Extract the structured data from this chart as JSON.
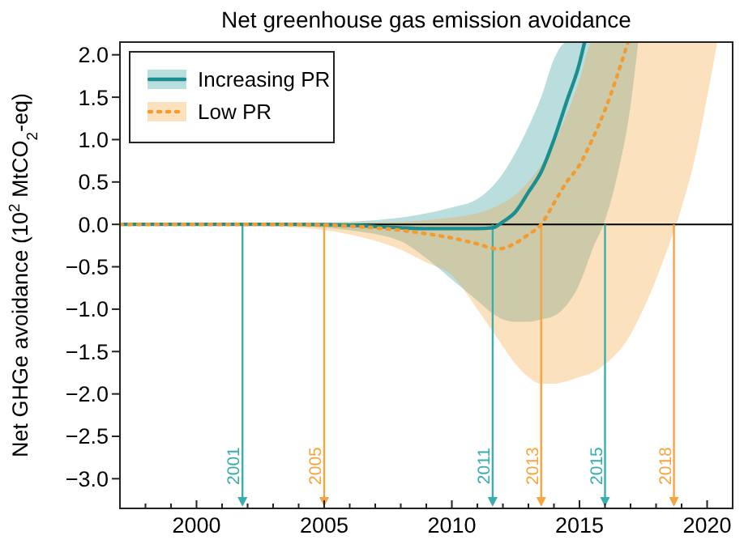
{
  "chart_data": {
    "type": "line",
    "title": "Net greenhouse gas emission avoidance",
    "ylabel": "Net GHGe avoidance (10$^{2}$ MtCO$_{2}$-eq)",
    "xlim": [
      1997,
      2021
    ],
    "ylim": [
      -3.35,
      2.15
    ],
    "xticks": [
      {
        "value": 1998,
        "label": null
      },
      {
        "value": 1999,
        "label": null
      },
      2000,
      {
        "value": 2001,
        "label": null
      },
      {
        "value": 2002,
        "label": null
      },
      {
        "value": 2003,
        "label": null
      },
      {
        "value": 2004,
        "label": null
      },
      2005,
      {
        "value": 2006,
        "label": null
      },
      {
        "value": 2007,
        "label": null
      },
      {
        "value": 2008,
        "label": null
      },
      {
        "value": 2009,
        "label": null
      },
      2010,
      {
        "value": 2011,
        "label": null
      },
      {
        "value": 2012,
        "label": null
      },
      {
        "value": 2013,
        "label": null
      },
      {
        "value": 2014,
        "label": null
      },
      2015,
      {
        "value": 2016,
        "label": null
      },
      {
        "value": 2017,
        "label": null
      },
      {
        "value": 2018,
        "label": null
      },
      {
        "value": 2019,
        "label": null
      },
      2020
    ],
    "yticks": [
      {
        "value": -3,
        "label": "−3.0"
      },
      {
        "value": -2.5,
        "label": "−2.5"
      },
      {
        "value": -2,
        "label": "−2.0"
      },
      {
        "value": -1.5,
        "label": "−1.5"
      },
      {
        "value": -1,
        "label": "−1.0"
      },
      {
        "value": -0.5,
        "label": "−0.5"
      },
      {
        "value": 0,
        "label": "0.0"
      },
      {
        "value": 0.5,
        "label": "0.5"
      },
      {
        "value": 1,
        "label": "1.0"
      },
      {
        "value": 1.5,
        "label": "1.5"
      },
      {
        "value": 2,
        "label": "2.0"
      }
    ],
    "legend": "top left",
    "series": [
      {
        "name": "Increasing PR",
        "color": "#1b8f8f",
        "line_style": "solid",
        "x": [
          1997,
          2000,
          2004,
          2006,
          2008,
          2009,
          2010,
          2011,
          2011.6,
          2012,
          2012.5,
          2013,
          2013.5,
          2014,
          2014.5,
          2015,
          2015.2,
          2015.5,
          2016,
          2016.5,
          2017,
          2017.3
        ],
        "values": [
          0,
          0,
          0,
          -0.01,
          -0.04,
          -0.05,
          -0.05,
          -0.05,
          -0.04,
          0.03,
          0.15,
          0.38,
          0.62,
          1.0,
          1.45,
          1.9,
          2.15,
          null,
          null,
          null,
          null,
          null
        ],
        "upper": [
          0,
          0,
          0.01,
          0.03,
          0.08,
          0.13,
          0.2,
          0.3,
          0.45,
          0.6,
          0.85,
          1.15,
          1.5,
          1.95,
          2.15,
          2.15,
          2.15,
          2.15,
          2.15,
          2.15,
          2.15,
          2.15
        ],
        "lower": [
          0,
          0,
          -0.02,
          -0.07,
          -0.2,
          -0.4,
          -0.65,
          -0.9,
          -1.05,
          -1.12,
          -1.15,
          -1.15,
          -1.12,
          -1.08,
          -0.95,
          -0.7,
          -0.55,
          -0.3,
          0.05,
          0.6,
          1.4,
          2.15
        ]
      },
      {
        "name": "Low PR",
        "color": "#f59a2c",
        "line_style": "dotted",
        "x": [
          1997,
          2000,
          2004,
          2006,
          2008,
          2009,
          2010,
          2011,
          2011.8,
          2012.5,
          2013,
          2013.5,
          2014,
          2014.5,
          2015,
          2015.5,
          2016,
          2016.9,
          2017.5,
          2018,
          2018.5,
          2019,
          2019.5,
          2020,
          2020.4
        ],
        "values": [
          0,
          0,
          0,
          -0.02,
          -0.07,
          -0.11,
          -0.16,
          -0.23,
          -0.29,
          -0.22,
          -0.12,
          0,
          0.25,
          0.5,
          0.7,
          1.0,
          1.35,
          2.15,
          null,
          null,
          null,
          null,
          null,
          null,
          null
        ],
        "upper": [
          0,
          0,
          0.01,
          0.02,
          0.03,
          0.05,
          0.08,
          0.13,
          0.22,
          0.35,
          0.5,
          0.7,
          0.95,
          1.3,
          1.7,
          2.15,
          2.15,
          2.15,
          2.15,
          2.15,
          2.15,
          2.15,
          2.15,
          2.15,
          2.15
        ],
        "lower": [
          0,
          0,
          -0.04,
          -0.12,
          -0.3,
          -0.45,
          -0.6,
          -1.0,
          -1.35,
          -1.65,
          -1.8,
          -1.88,
          -1.88,
          -1.85,
          -1.8,
          -1.75,
          -1.65,
          -1.35,
          -1.0,
          -0.65,
          -0.25,
          0.2,
          0.75,
          1.5,
          2.15
        ]
      }
    ],
    "ref_lines": [
      {
        "axis": "y",
        "value": 0,
        "color": "#000000"
      },
      {
        "axis": "x",
        "value": 2001.8,
        "color": "#3aaeae"
      },
      {
        "axis": "x",
        "value": 2005,
        "color": "#f5a640"
      },
      {
        "axis": "x",
        "value": 2011.6,
        "color": "#3aaeae"
      },
      {
        "axis": "x",
        "value": 2013.5,
        "color": "#f5a640"
      },
      {
        "axis": "x",
        "value": 2016,
        "color": "#3aaeae"
      },
      {
        "axis": "x",
        "value": 2018.7,
        "color": "#f5a640"
      }
    ],
    "annotations": [
      {
        "text": "2001",
        "x": 2001.8,
        "y": -2.85
      },
      {
        "text": "2005",
        "x": 2005,
        "y": -2.85
      },
      {
        "text": "2011",
        "x": 2011.6,
        "y": -2.85
      },
      {
        "text": "2013",
        "x": 2013.5,
        "y": -2.85
      },
      {
        "text": "2015",
        "x": 2016,
        "y": -2.85
      },
      {
        "text": "2018",
        "x": 2018.7,
        "y": -2.85
      }
    ]
  }
}
